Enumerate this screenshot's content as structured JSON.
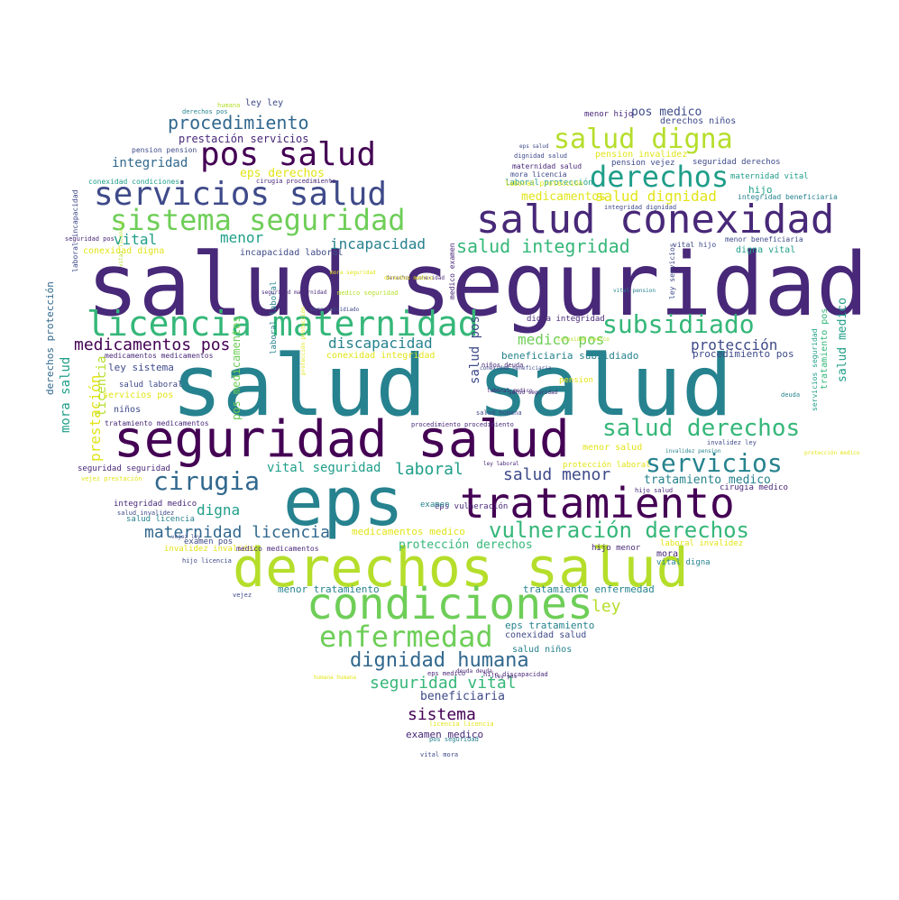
{
  "palette": {
    "purple": "#482878",
    "deep": "#440154",
    "indigo": "#3e4a89",
    "blue": "#31688e",
    "teal": "#26828e",
    "seagreen": "#1f9e89",
    "green": "#35b779",
    "lime": "#6ece58",
    "yellowgreen": "#b5de2b",
    "yellow": "#e2e418"
  },
  "words": [
    {
      "text": "salud seguridad",
      "color": "purple"
    },
    {
      "text": "salud salud",
      "color": "teal"
    },
    {
      "text": "seguridad salud",
      "color": "deep"
    },
    {
      "text": "eps",
      "color": "teal"
    },
    {
      "text": "derechos salud",
      "color": "yellowgreen"
    },
    {
      "text": "tratamiento",
      "color": "deep"
    },
    {
      "text": "condiciones",
      "color": "lime"
    },
    {
      "text": "salud conexidad",
      "color": "purple"
    },
    {
      "text": "licencia maternidad",
      "color": "green"
    },
    {
      "text": "servicios salud",
      "color": "indigo"
    },
    {
      "text": "sistema seguridad",
      "color": "lime"
    },
    {
      "text": "pos salud",
      "color": "deep"
    },
    {
      "text": "salud digna",
      "color": "yellowgreen"
    },
    {
      "text": "derechos",
      "color": "seagreen"
    },
    {
      "text": "enfermedad",
      "color": "lime"
    },
    {
      "text": "subsidiado",
      "color": "green"
    },
    {
      "text": "salud derechos",
      "color": "green"
    },
    {
      "text": "servicios",
      "color": "teal"
    },
    {
      "text": "cirugia",
      "color": "blue"
    },
    {
      "text": "vulneración derechos",
      "color": "green"
    },
    {
      "text": "dignidad humana",
      "color": "blue"
    },
    {
      "text": "procedimiento",
      "color": "blue"
    },
    {
      "text": "medicamentos pos",
      "color": "deep"
    },
    {
      "text": "salud integridad",
      "color": "green"
    },
    {
      "text": "seguridad vital",
      "color": "green"
    },
    {
      "text": "maternidad licencia",
      "color": "blue"
    },
    {
      "text": "salud menor",
      "color": "indigo"
    },
    {
      "text": "sistema",
      "color": "deep"
    },
    {
      "text": "salud dignidad",
      "color": "yellow"
    },
    {
      "text": "incapacidad",
      "color": "teal"
    },
    {
      "text": "discapacidad",
      "color": "teal"
    },
    {
      "text": "medico pos",
      "color": "lime"
    },
    {
      "text": "laboral",
      "color": "seagreen"
    },
    {
      "text": "menor",
      "color": "seagreen"
    },
    {
      "text": "vital",
      "color": "seagreen"
    },
    {
      "text": "integridad",
      "color": "blue"
    },
    {
      "text": "ley",
      "color": "yellowgreen"
    },
    {
      "text": "protección",
      "color": "indigo"
    },
    {
      "text": "digna",
      "color": "seagreen"
    },
    {
      "text": "vital seguridad",
      "color": "seagreen"
    },
    {
      "text": "tratamiento medico",
      "color": "teal"
    },
    {
      "text": "medicamentos",
      "color": "yellow"
    },
    {
      "text": "pos medico",
      "color": "indigo"
    },
    {
      "text": "prestación servicios",
      "color": "purple"
    },
    {
      "text": "eps derechos",
      "color": "yellow"
    },
    {
      "text": "beneficiaria",
      "color": "indigo"
    },
    {
      "text": "mora salud",
      "color": "seagreen"
    },
    {
      "text": "prestación",
      "color": "yellow"
    },
    {
      "text": "salud medico",
      "color": "seagreen"
    },
    {
      "text": "protección derechos",
      "color": "green"
    },
    {
      "text": "salud pos",
      "color": "indigo"
    },
    {
      "text": "derechos protección",
      "color": "blue"
    },
    {
      "text": "licencia",
      "color": "yellowgreen"
    },
    {
      "text": "pos medicamentos",
      "color": "lime"
    },
    {
      "text": "menor tratamiento",
      "color": "teal"
    },
    {
      "text": "tratamiento enfermedad",
      "color": "teal"
    },
    {
      "text": "medicamentos medico",
      "color": "yellow"
    },
    {
      "text": "examen medico",
      "color": "purple"
    },
    {
      "text": "eps tratamiento",
      "color": "teal"
    },
    {
      "text": "salud niños",
      "color": "teal"
    },
    {
      "text": "conexidad salud",
      "color": "indigo"
    },
    {
      "text": "procedimiento pos",
      "color": "indigo"
    },
    {
      "text": "ley sistema",
      "color": "indigo"
    },
    {
      "text": "beneficiaria subsidiado",
      "color": "teal"
    },
    {
      "text": "conexidad integridad",
      "color": "yellow"
    },
    {
      "text": "incapacidad laboral",
      "color": "indigo"
    },
    {
      "text": "conexidad digna",
      "color": "yellow"
    },
    {
      "text": "derechos niños",
      "color": "indigo"
    },
    {
      "text": "pension invalidez",
      "color": "yellow"
    },
    {
      "text": "pension vejez",
      "color": "indigo"
    },
    {
      "text": "seguridad derechos",
      "color": "indigo"
    },
    {
      "text": "menor hijo",
      "color": "purple"
    },
    {
      "text": "hijo",
      "color": "seagreen"
    },
    {
      "text": "maternidad vital",
      "color": "seagreen"
    },
    {
      "text": "laboral protección",
      "color": "seagreen"
    },
    {
      "text": "integridad beneficiaria",
      "color": "teal"
    },
    {
      "text": "integridad dignidad",
      "color": "indigo"
    },
    {
      "text": "menor beneficiaria",
      "color": "indigo"
    },
    {
      "text": "digna vital",
      "color": "seagreen"
    },
    {
      "text": "vital hijo",
      "color": "indigo"
    },
    {
      "text": "ley servicios",
      "color": "indigo"
    },
    {
      "text": "salud laboral",
      "color": "indigo"
    },
    {
      "text": "servicios pos",
      "color": "yellow"
    },
    {
      "text": "niños",
      "color": "indigo"
    },
    {
      "text": "tratamiento medicamentos",
      "color": "purple"
    },
    {
      "text": "medicamentos medicamentos",
      "color": "purple"
    },
    {
      "text": "laboral laboral",
      "color": "teal"
    },
    {
      "text": "seguridad seguridad",
      "color": "purple"
    },
    {
      "text": "integridad medico",
      "color": "purple"
    },
    {
      "text": "salud licencia",
      "color": "teal"
    },
    {
      "text": "invalidez invalidez",
      "color": "yellow"
    },
    {
      "text": "medico medicamentos",
      "color": "purple"
    },
    {
      "text": "hijo licencia",
      "color": "indigo"
    },
    {
      "text": "vejez",
      "color": "indigo"
    },
    {
      "text": "examen pos",
      "color": "indigo"
    },
    {
      "text": "mora",
      "color": "purple"
    },
    {
      "text": "hijo menor",
      "color": "purple"
    },
    {
      "text": "vital digna",
      "color": "teal"
    },
    {
      "text": "laboral invalidez",
      "color": "yellow"
    },
    {
      "text": "cirugia medico",
      "color": "purple"
    },
    {
      "text": "hijo salud",
      "color": "purple"
    },
    {
      "text": "menor salud",
      "color": "yellow"
    },
    {
      "text": "protección laboral",
      "color": "yellow"
    },
    {
      "text": "eps vulneración",
      "color": "purple"
    },
    {
      "text": "examen",
      "color": "teal"
    },
    {
      "text": "pension",
      "color": "yellow"
    },
    {
      "text": "deuda",
      "color": "teal"
    },
    {
      "text": "tratamiento pos",
      "color": "green"
    },
    {
      "text": "servicios seguridad",
      "color": "seagreen"
    },
    {
      "text": "mora licencia",
      "color": "indigo"
    },
    {
      "text": "dignidad salud",
      "color": "indigo"
    },
    {
      "text": "maternidad salud",
      "color": "purple"
    },
    {
      "text": "laboral protección",
      "color": "yellow"
    },
    {
      "text": "ley ley",
      "color": "indigo"
    },
    {
      "text": "pension pension",
      "color": "indigo"
    },
    {
      "text": "conexidad condiciones",
      "color": "seagreen"
    },
    {
      "text": "cirugia procedimiento",
      "color": "purple"
    },
    {
      "text": "derechos pos",
      "color": "teal"
    },
    {
      "text": "humana",
      "color": "yellowgreen"
    },
    {
      "text": "vejez ley",
      "color": "indigo"
    },
    {
      "text": "seguridad pos",
      "color": "purple"
    },
    {
      "text": "medico seguridad",
      "color": "yellowgreen"
    },
    {
      "text": "digna integridad",
      "color": "purple"
    },
    {
      "text": "licencia licencia",
      "color": "yellow"
    },
    {
      "text": "pos seguridad",
      "color": "teal"
    },
    {
      "text": "vital mora",
      "color": "indigo"
    },
    {
      "text": "salud invalidez",
      "color": "indigo"
    },
    {
      "text": "vejez prestación",
      "color": "yellow"
    },
    {
      "text": "laboral incapacidad",
      "color": "indigo"
    },
    {
      "text": "vital licencia",
      "color": "yellowgreen"
    },
    {
      "text": "mora subsidiado",
      "color": "indigo"
    },
    {
      "text": "hijo discapacidad",
      "color": "purple"
    },
    {
      "text": "medico examen",
      "color": "purple"
    },
    {
      "text": "invalidez pension",
      "color": "teal"
    },
    {
      "text": "invalidez ley",
      "color": "indigo"
    },
    {
      "text": "procedimiento procedimiento",
      "color": "purple"
    },
    {
      "text": "conexidad beneficiaria",
      "color": "indigo"
    },
    {
      "text": "protección protección",
      "color": "yellow"
    },
    {
      "text": "vital pension",
      "color": "teal"
    },
    {
      "text": "salud humana",
      "color": "indigo"
    },
    {
      "text": "eps salud",
      "color": "indigo"
    },
    {
      "text": "derechos conexidad",
      "color": "purple"
    },
    {
      "text": "ley pos",
      "color": "purple"
    },
    {
      "text": "niños deuda",
      "color": "purple"
    },
    {
      "text": "mora seguridad",
      "color": "yellow"
    },
    {
      "text": "laboral medico",
      "color": "purple"
    },
    {
      "text": "seguridad maternidad",
      "color": "purple"
    },
    {
      "text": "salud seguridad",
      "color": "purple"
    },
    {
      "text": "humana humana",
      "color": "yellow"
    },
    {
      "text": "deuda deuda",
      "color": "purple"
    },
    {
      "text": "conexidad medico",
      "color": "yellowgreen"
    },
    {
      "text": "eps medico",
      "color": "purple"
    },
    {
      "text": "derechos medico",
      "color": "yellow"
    },
    {
      "text": "ley laboral",
      "color": "purple"
    },
    {
      "text": "protección medico",
      "color": "yellow"
    },
    {
      "text": "digna laboral",
      "color": "yellowgreen"
    },
    {
      "text": "eps protección",
      "color": "yellow"
    },
    {
      "text": "derechos derechos",
      "color": "purple"
    }
  ]
}
